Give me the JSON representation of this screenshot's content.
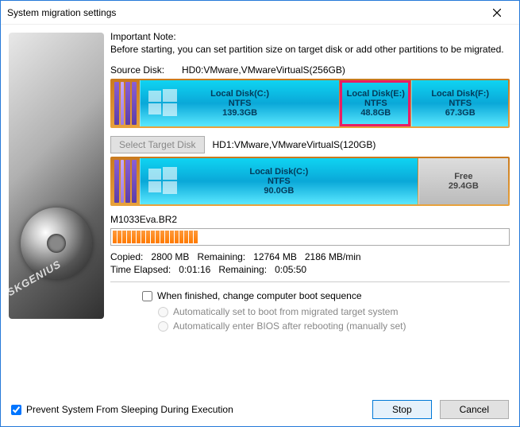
{
  "window": {
    "title": "System migration settings"
  },
  "note": {
    "heading": "Important Note:",
    "text": "Before starting, you can set partition size on target disk or add other partitions to be migrated."
  },
  "source": {
    "label": "Source Disk:",
    "value": "HD0:VMware,VMwareVirtualS(256GB)",
    "partitions": [
      {
        "label": "Local Disk(C:)",
        "fs": "NTFS",
        "size": "139.3GB",
        "flex": 139,
        "win": true,
        "selected": false
      },
      {
        "label": "Local Disk(E:)",
        "fs": "NTFS",
        "size": "48.8GB",
        "flex": 49,
        "win": false,
        "selected": true
      },
      {
        "label": "Local Disk(F:)",
        "fs": "NTFS",
        "size": "67.3GB",
        "flex": 67,
        "win": false,
        "selected": false
      }
    ]
  },
  "target": {
    "button": "Select Target Disk",
    "value": "HD1:VMware,VMwareVirtualS(120GB)",
    "partitions": [
      {
        "label": "Local Disk(C:)",
        "fs": "NTFS",
        "size": "90.0GB",
        "flex": 90,
        "win": true,
        "free": false
      },
      {
        "label": "Free",
        "fs": "",
        "size": "29.4GB",
        "flex": 29,
        "win": false,
        "free": true
      }
    ]
  },
  "progress": {
    "filename": "M1033Eva.BR2",
    "percent": 18,
    "copied_label": "Copied:",
    "copied": "2800 MB",
    "remaining_label": "Remaining:",
    "remaining": "12764 MB",
    "rate": "2186 MB/min",
    "elapsed_label": "Time Elapsed:",
    "elapsed": "0:01:16",
    "tremain_label": "Remaining:",
    "tremain": "0:05:50"
  },
  "options": {
    "boot_seq": "When finished, change computer boot sequence",
    "auto_migrated": "Automatically set to boot from migrated target system",
    "auto_bios": "Automatically enter BIOS after rebooting (manually set)"
  },
  "footer": {
    "prevent_sleep": "Prevent System From Sleeping During Execution",
    "stop": "Stop",
    "cancel": "Cancel"
  },
  "brand": "DISKGENIUS",
  "colors": {
    "accent": "#2579d8",
    "partition_gradient": [
      "#0fd4f2",
      "#0aa8d8",
      "#5be8ff"
    ],
    "selected_outline": "#e91e63",
    "disk_bg": [
      "#c97a1e",
      "#e8a23c"
    ],
    "progress_seg": [
      "#ff9a3c",
      "#ff7a00"
    ]
  }
}
